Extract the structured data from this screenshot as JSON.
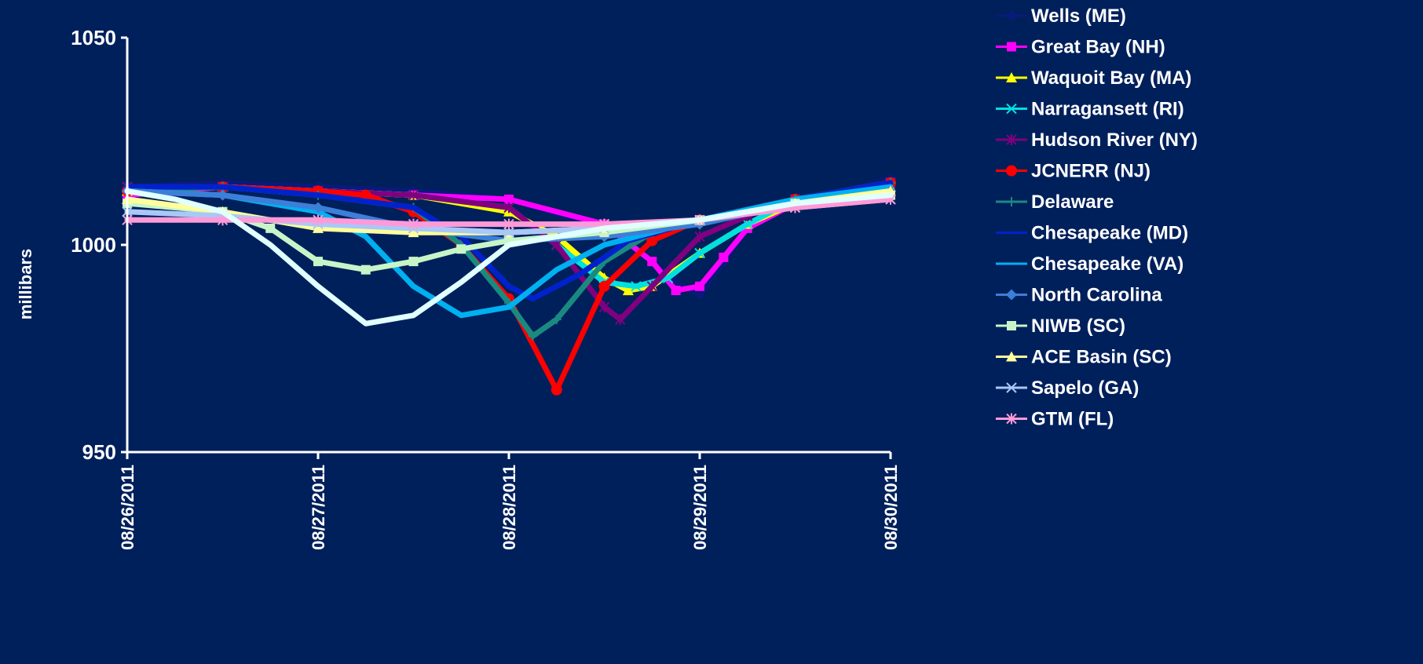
{
  "chart_data": {
    "type": "line",
    "title": "",
    "xlabel": "",
    "ylabel": "millibars",
    "xlim": [
      "08/26/2011",
      "08/30/2011"
    ],
    "x_ticks": [
      "08/26/2011",
      "08/27/2011",
      "08/28/2011",
      "08/29/2011",
      "08/30/2011"
    ],
    "ylim": [
      950,
      1050
    ],
    "y_ticks": [
      950,
      1000,
      1050
    ],
    "grid": false,
    "legend": "right",
    "background": "#00205b",
    "series": [
      {
        "name": "Wells (ME)",
        "color": "#0a1a7a",
        "marker": "diamond",
        "points": [
          [
            "08/26/2011 00:00",
            1014
          ],
          [
            "08/26/2011 12:00",
            1015
          ],
          [
            "08/27/2011 00:00",
            1014
          ],
          [
            "08/27/2011 12:00",
            1013
          ],
          [
            "08/28/2011 00:00",
            1011
          ],
          [
            "08/28/2011 12:00",
            1004
          ],
          [
            "08/28/2011 18:00",
            996
          ],
          [
            "08/28/2011 21:00",
            991
          ],
          [
            "08/29/2011 00:00",
            988
          ],
          [
            "08/29/2011 03:00",
            996
          ],
          [
            "08/29/2011 06:00",
            1004
          ],
          [
            "08/29/2011 12:00",
            1010
          ],
          [
            "08/30/2011 00:00",
            1016
          ]
        ]
      },
      {
        "name": "Great Bay (NH)",
        "color": "#ff00ff",
        "marker": "square",
        "points": [
          [
            "08/26/2011 00:00",
            1012
          ],
          [
            "08/26/2011 12:00",
            1014
          ],
          [
            "08/27/2011 00:00",
            1013
          ],
          [
            "08/27/2011 12:00",
            1012
          ],
          [
            "08/28/2011 00:00",
            1011
          ],
          [
            "08/28/2011 12:00",
            1005
          ],
          [
            "08/28/2011 18:00",
            996
          ],
          [
            "08/28/2011 21:00",
            989
          ],
          [
            "08/29/2011 00:00",
            990
          ],
          [
            "08/29/2011 03:00",
            997
          ],
          [
            "08/29/2011 06:00",
            1004
          ],
          [
            "08/29/2011 12:00",
            1010
          ],
          [
            "08/30/2011 00:00",
            1015
          ]
        ]
      },
      {
        "name": "Waquoit Bay (MA)",
        "color": "#ffff00",
        "marker": "triangle",
        "points": [
          [
            "08/26/2011 00:00",
            1013
          ],
          [
            "08/26/2011 12:00",
            1014
          ],
          [
            "08/27/2011 00:00",
            1013
          ],
          [
            "08/27/2011 12:00",
            1012
          ],
          [
            "08/28/2011 00:00",
            1008
          ],
          [
            "08/28/2011 06:00",
            1002
          ],
          [
            "08/28/2011 12:00",
            992
          ],
          [
            "08/28/2011 15:00",
            989
          ],
          [
            "08/28/2011 18:00",
            990
          ],
          [
            "08/29/2011 00:00",
            998
          ],
          [
            "08/29/2011 06:00",
            1005
          ],
          [
            "08/29/2011 12:00",
            1010
          ],
          [
            "08/30/2011 00:00",
            1014
          ]
        ]
      },
      {
        "name": "Narragansett (RI)",
        "color": "#00e0e0",
        "marker": "x",
        "points": [
          [
            "08/26/2011 00:00",
            1014
          ],
          [
            "08/26/2011 12:00",
            1014
          ],
          [
            "08/27/2011 00:00",
            1013
          ],
          [
            "08/27/2011 12:00",
            1012
          ],
          [
            "08/28/2011 00:00",
            1009
          ],
          [
            "08/28/2011 06:00",
            1000
          ],
          [
            "08/28/2011 12:00",
            991
          ],
          [
            "08/28/2011 16:00",
            990
          ],
          [
            "08/28/2011 20:00",
            992
          ],
          [
            "08/29/2011 00:00",
            998
          ],
          [
            "08/29/2011 06:00",
            1005
          ],
          [
            "08/29/2011 12:00",
            1011
          ],
          [
            "08/30/2011 00:00",
            1015
          ]
        ]
      },
      {
        "name": "Hudson River (NY)",
        "color": "#800080",
        "marker": "star",
        "points": [
          [
            "08/26/2011 00:00",
            1014
          ],
          [
            "08/26/2011 12:00",
            1014
          ],
          [
            "08/27/2011 00:00",
            1013
          ],
          [
            "08/27/2011 12:00",
            1012
          ],
          [
            "08/28/2011 00:00",
            1009
          ],
          [
            "08/28/2011 06:00",
            1000
          ],
          [
            "08/28/2011 12:00",
            985
          ],
          [
            "08/28/2011 14:00",
            982
          ],
          [
            "08/28/2011 18:00",
            990
          ],
          [
            "08/29/2011 00:00",
            1002
          ],
          [
            "08/29/2011 06:00",
            1007
          ],
          [
            "08/29/2011 12:00",
            1011
          ],
          [
            "08/30/2011 00:00",
            1015
          ]
        ]
      },
      {
        "name": "JCNERR (NJ)",
        "color": "#ff0000",
        "marker": "circle",
        "points": [
          [
            "08/26/2011 00:00",
            1013
          ],
          [
            "08/26/2011 12:00",
            1014
          ],
          [
            "08/27/2011 00:00",
            1013
          ],
          [
            "08/27/2011 06:00",
            1012
          ],
          [
            "08/27/2011 12:00",
            1008
          ],
          [
            "08/27/2011 18:00",
            1000
          ],
          [
            "08/28/2011 00:00",
            987
          ],
          [
            "08/28/2011 06:00",
            965
          ],
          [
            "08/28/2011 12:00",
            990
          ],
          [
            "08/28/2011 18:00",
            1001
          ],
          [
            "08/29/2011 00:00",
            1006
          ],
          [
            "08/29/2011 12:00",
            1011
          ],
          [
            "08/30/2011 00:00",
            1015
          ]
        ]
      },
      {
        "name": "Delaware",
        "color": "#1a8a80",
        "marker": "plus",
        "points": [
          [
            "08/26/2011 00:00",
            1013
          ],
          [
            "08/26/2011 12:00",
            1014
          ],
          [
            "08/27/2011 00:00",
            1012
          ],
          [
            "08/27/2011 12:00",
            1009
          ],
          [
            "08/27/2011 18:00",
            1000
          ],
          [
            "08/28/2011 00:00",
            986
          ],
          [
            "08/28/2011 03:00",
            978
          ],
          [
            "08/28/2011 06:00",
            982
          ],
          [
            "08/28/2011 12:00",
            996
          ],
          [
            "08/28/2011 18:00",
            1003
          ],
          [
            "08/29/2011 00:00",
            1006
          ],
          [
            "08/29/2011 12:00",
            1011
          ],
          [
            "08/30/2011 00:00",
            1015
          ]
        ]
      },
      {
        "name": "Chesapeake (MD)",
        "color": "#0022cc",
        "marker": "none",
        "points": [
          [
            "08/26/2011 00:00",
            1014
          ],
          [
            "08/26/2011 12:00",
            1014
          ],
          [
            "08/27/2011 00:00",
            1012
          ],
          [
            "08/27/2011 12:00",
            1009
          ],
          [
            "08/27/2011 18:00",
            1002
          ],
          [
            "08/28/2011 00:00",
            990
          ],
          [
            "08/28/2011 03:00",
            987
          ],
          [
            "08/28/2011 09:00",
            993
          ],
          [
            "08/28/2011 15:00",
            1001
          ],
          [
            "08/29/2011 00:00",
            1006
          ],
          [
            "08/29/2011 12:00",
            1011
          ],
          [
            "08/30/2011 00:00",
            1015
          ]
        ]
      },
      {
        "name": "Chesapeake (VA)",
        "color": "#00b0f0",
        "marker": "none",
        "points": [
          [
            "08/26/2011 00:00",
            1013
          ],
          [
            "08/26/2011 12:00",
            1012
          ],
          [
            "08/27/2011 00:00",
            1008
          ],
          [
            "08/27/2011 06:00",
            1002
          ],
          [
            "08/27/2011 12:00",
            990
          ],
          [
            "08/27/2011 18:00",
            983
          ],
          [
            "08/28/2011 00:00",
            985
          ],
          [
            "08/28/2011 06:00",
            994
          ],
          [
            "08/28/2011 12:00",
            1000
          ],
          [
            "08/29/2011 00:00",
            1006
          ],
          [
            "08/29/2011 12:00",
            1011
          ],
          [
            "08/30/2011 00:00",
            1014
          ]
        ]
      },
      {
        "name": "North Carolina",
        "color": "#3c7fd8",
        "marker": "diamond",
        "points": [
          [
            "08/26/2011 00:00",
            1013
          ],
          [
            "08/26/2011 12:00",
            1012
          ],
          [
            "08/27/2011 00:00",
            1009
          ],
          [
            "08/27/2011 12:00",
            1004
          ],
          [
            "08/28/2011 00:00",
            1001
          ],
          [
            "08/28/2011 12:00",
            1002
          ],
          [
            "08/29/2011 00:00",
            1005
          ],
          [
            "08/29/2011 12:00",
            1010
          ],
          [
            "08/30/2011 00:00",
            1013
          ]
        ]
      },
      {
        "name": "NIWB (SC)",
        "color": "#c8f5c8",
        "marker": "square",
        "points": [
          [
            "08/26/2011 00:00",
            1010
          ],
          [
            "08/26/2011 12:00",
            1008
          ],
          [
            "08/26/2011 18:00",
            1004
          ],
          [
            "08/27/2011 00:00",
            996
          ],
          [
            "08/27/2011 06:00",
            994
          ],
          [
            "08/27/2011 12:00",
            996
          ],
          [
            "08/27/2011 18:00",
            999
          ],
          [
            "08/28/2011 00:00",
            1001
          ],
          [
            "08/28/2011 12:00",
            1003
          ],
          [
            "08/29/2011 00:00",
            1006
          ],
          [
            "08/29/2011 12:00",
            1010
          ],
          [
            "08/30/2011 00:00",
            1012
          ]
        ]
      },
      {
        "name": "ACE Basin (SC)",
        "color": "#fffe9c",
        "marker": "triangle",
        "points": [
          [
            "08/26/2011 00:00",
            1011
          ],
          [
            "08/26/2011 12:00",
            1008
          ],
          [
            "08/27/2011 00:00",
            1004
          ],
          [
            "08/27/2011 12:00",
            1003
          ],
          [
            "08/28/2011 00:00",
            1003
          ],
          [
            "08/28/2011 12:00",
            1004
          ],
          [
            "08/29/2011 00:00",
            1006
          ],
          [
            "08/29/2011 12:00",
            1010
          ],
          [
            "08/30/2011 00:00",
            1013
          ]
        ]
      },
      {
        "name": "Sapelo (GA)",
        "color": "#a8c8f8",
        "marker": "x",
        "points": [
          [
            "08/26/2011 00:00",
            1008
          ],
          [
            "08/26/2011 12:00",
            1007
          ],
          [
            "08/27/2011 00:00",
            1005
          ],
          [
            "08/27/2011 12:00",
            1004
          ],
          [
            "08/28/2011 00:00",
            1003
          ],
          [
            "08/28/2011 12:00",
            1004
          ],
          [
            "08/29/2011 00:00",
            1006
          ],
          [
            "08/29/2011 12:00",
            1009
          ],
          [
            "08/30/2011 00:00",
            1011
          ]
        ]
      },
      {
        "name": "GTM (FL)",
        "color": "#ff9ad8",
        "marker": "star",
        "points": [
          [
            "08/26/2011 00:00",
            1006
          ],
          [
            "08/26/2011 12:00",
            1006
          ],
          [
            "08/27/2011 00:00",
            1006
          ],
          [
            "08/27/2011 12:00",
            1005
          ],
          [
            "08/28/2011 00:00",
            1005
          ],
          [
            "08/28/2011 12:00",
            1005
          ],
          [
            "08/29/2011 00:00",
            1006
          ],
          [
            "08/29/2011 12:00",
            1009
          ],
          [
            "08/30/2011 00:00",
            1011
          ]
        ]
      },
      {
        "name": "",
        "color": "#e0ffff",
        "marker": "none",
        "points": [
          [
            "08/26/2011 00:00",
            1013
          ],
          [
            "08/26/2011 06:00",
            1011
          ],
          [
            "08/26/2011 12:00",
            1008
          ],
          [
            "08/26/2011 18:00",
            1000
          ],
          [
            "08/27/2011 00:00",
            990
          ],
          [
            "08/27/2011 06:00",
            981
          ],
          [
            "08/27/2011 12:00",
            983
          ],
          [
            "08/27/2011 18:00",
            991
          ],
          [
            "08/28/2011 00:00",
            1000
          ],
          [
            "08/28/2011 12:00",
            1004
          ],
          [
            "08/29/2011 00:00",
            1006
          ],
          [
            "08/29/2011 12:00",
            1010
          ],
          [
            "08/30/2011 00:00",
            1012
          ]
        ]
      }
    ]
  }
}
